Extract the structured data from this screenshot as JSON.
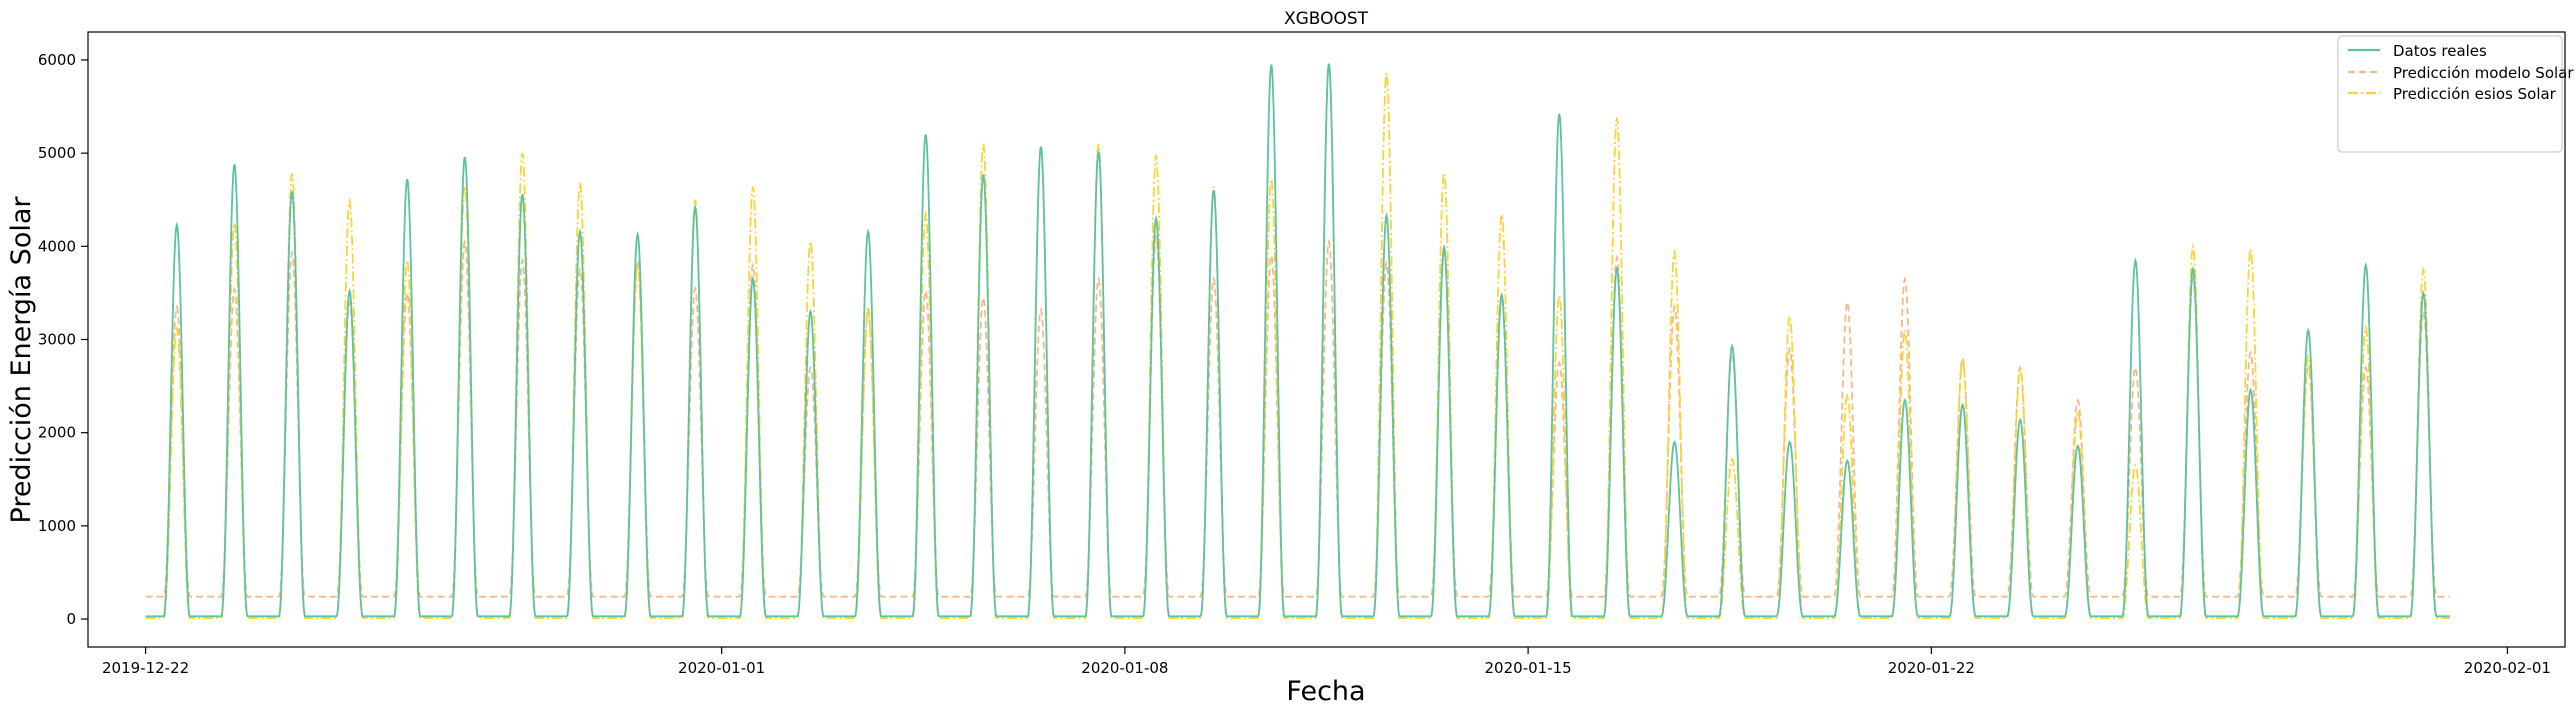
{
  "chart_data": {
    "type": "line",
    "title": "XGBOOST",
    "xlabel": "Fecha",
    "ylabel": "Predicción Energía Solar",
    "x_range": [
      "2019-12-21",
      "2020-02-02"
    ],
    "ylim": [
      -300,
      6300
    ],
    "x_ticks": [
      "2019-12-22",
      "2020-01-01",
      "2020-01-08",
      "2020-01-15",
      "2020-01-22",
      "2020-02-01"
    ],
    "y_ticks": [
      0,
      1000,
      2000,
      3000,
      4000,
      5000,
      6000
    ],
    "grid": false,
    "legend_position": "top-right",
    "day_start": "2019-12-22",
    "series": [
      {
        "name": "Datos reales",
        "color": "#5cc29f",
        "style": "solid",
        "peaks": [
          4230,
          4880,
          4590,
          3520,
          4720,
          4960,
          4560,
          4160,
          4130,
          4420,
          3650,
          3300,
          4160,
          5200,
          4770,
          5070,
          5020,
          4300,
          4600,
          5950,
          5960,
          4330,
          3990,
          3480,
          5420,
          3760,
          1900,
          2930,
          1900,
          1700,
          2350,
          2300,
          2140,
          1860,
          3850,
          3760,
          2460,
          3100,
          3800,
          3500
        ],
        "baseline": 30
      },
      {
        "name": "Predicción modelo Solar",
        "color": "#f4b98a",
        "style": "dashed",
        "peaks": [
          3350,
          3540,
          3930,
          3400,
          3500,
          4050,
          3850,
          3750,
          3850,
          3550,
          3800,
          2700,
          3300,
          3520,
          3450,
          3320,
          3650,
          4100,
          3650,
          3900,
          4050,
          3820,
          3940,
          3460,
          2750,
          3880,
          3350,
          2850,
          2900,
          3400,
          3650,
          2800,
          2700,
          2350,
          2700,
          3650,
          2860,
          2700,
          2700,
          3300
        ],
        "baseline": 240
      },
      {
        "name": "Predicción esios Solar",
        "color": "#fcd336",
        "style": "dashdot",
        "peaks": [
          3120,
          4250,
          4780,
          4490,
          3850,
          4650,
          5000,
          4680,
          3800,
          4500,
          4640,
          4050,
          3350,
          4350,
          5100,
          5050,
          5100,
          4980,
          4640,
          4720,
          5970,
          5860,
          4790,
          4340,
          3470,
          5380,
          3940,
          1720,
          3250,
          2400,
          3100,
          2780,
          2680,
          2230,
          1650,
          4000,
          3970,
          2820,
          3130,
          3750
        ],
        "baseline": 10
      }
    ]
  }
}
